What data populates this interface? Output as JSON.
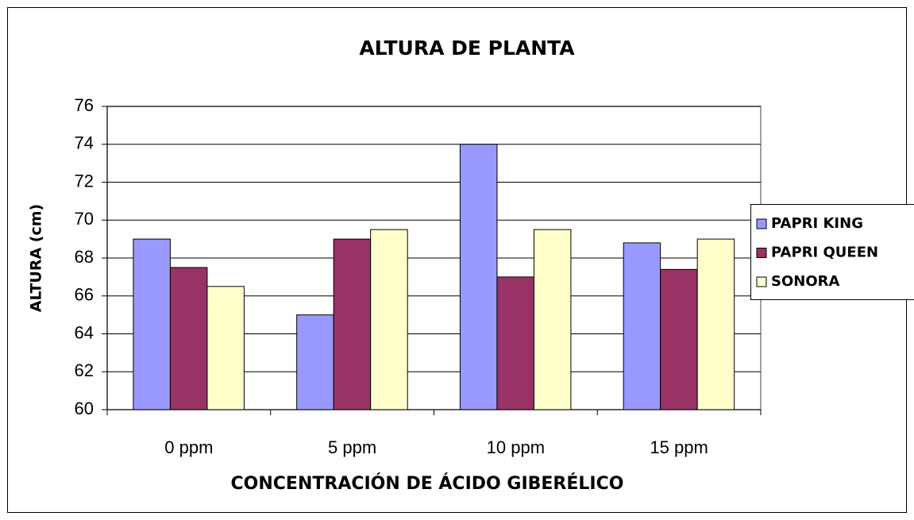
{
  "chart_data": {
    "type": "bar",
    "title": "ALTURA DE PLANTA",
    "x_label": "CONCENTRACIÓN DE ÁCIDO GIBERÉLICO",
    "y_label": "ALTURA (cm)",
    "categories": [
      "0 ppm",
      "5 ppm",
      "10 ppm",
      "15 ppm"
    ],
    "series": [
      {
        "name": "PAPRI KING",
        "color": "#9999ff",
        "values": [
          69,
          65,
          74,
          68.8
        ]
      },
      {
        "name": "PAPRI QUEEN",
        "color": "#993366",
        "values": [
          67.5,
          69,
          67,
          67.4
        ]
      },
      {
        "name": "SONORA",
        "color": "#ffffcc",
        "values": [
          66.5,
          69.5,
          69.5,
          69
        ]
      }
    ],
    "ylim": [
      60,
      76
    ],
    "yticks": [
      60,
      62,
      64,
      66,
      68,
      70,
      72,
      74,
      76
    ],
    "grid": true,
    "legend": "right"
  }
}
